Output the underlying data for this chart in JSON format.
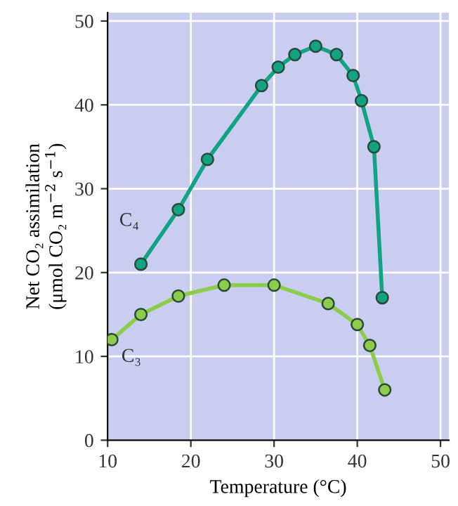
{
  "chart_data": {
    "type": "line",
    "xlabel": "Temperature (°C)",
    "ylabel": "Net CO₂ assimilation\n(μmol CO₂ m$^{−2}$ s$^{−1}$)",
    "xlim": [
      10,
      51
    ],
    "ylim": [
      0,
      51
    ],
    "xticks": [
      10,
      20,
      30,
      40,
      50
    ],
    "yticks": [
      0,
      10,
      20,
      30,
      40,
      50
    ],
    "grid": true,
    "marker": "circle",
    "line_style": "solid",
    "series": [
      {
        "name": "C₄",
        "color": "#12a383",
        "x": [
          14,
          18.5,
          22,
          28.5,
          30.5,
          32.5,
          35,
          37.5,
          39.5,
          40.5,
          42,
          43
        ],
        "values": [
          21,
          27.5,
          33.5,
          42.3,
          44.5,
          46,
          47,
          46,
          43.5,
          40.5,
          35,
          17
        ]
      },
      {
        "name": "C₃",
        "color": "#8ccc4a",
        "x": [
          10.5,
          14,
          18.5,
          24,
          30,
          36.5,
          40,
          41.5,
          43.3
        ],
        "values": [
          12,
          15,
          17.2,
          18.5,
          18.5,
          16.3,
          13.8,
          11.3,
          6
        ]
      }
    ]
  }
}
